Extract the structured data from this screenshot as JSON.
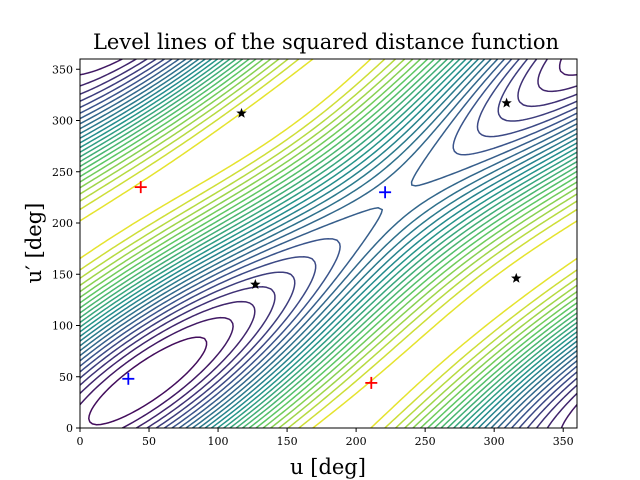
{
  "chart_data": {
    "type": "contour",
    "title": "Level lines of the squared distance function",
    "xlabel": "u [deg]",
    "ylabel": "u′ [deg]",
    "xlim": [
      0,
      360
    ],
    "ylim": [
      0,
      360
    ],
    "xticks": [
      0,
      50,
      100,
      150,
      200,
      250,
      300,
      350
    ],
    "yticks": [
      0,
      50,
      100,
      150,
      200,
      250,
      300,
      350
    ],
    "grid": false,
    "colormap": [
      "#440154",
      "#3b528b",
      "#21918c",
      "#5ec962",
      "#fde725"
    ],
    "minima": [
      {
        "u": 35,
        "up": 48
      },
      {
        "u": 221,
        "up": 230
      }
    ],
    "maxima": [
      {
        "u": 44,
        "up": 235
      },
      {
        "u": 211,
        "up": 44
      }
    ],
    "saddles": [
      {
        "u": 117,
        "up": 307
      },
      {
        "u": 127,
        "up": 140
      },
      {
        "u": 309,
        "up": 317
      },
      {
        "u": 316,
        "up": 146
      }
    ],
    "minima_color": "#0000ff",
    "maxima_color": "#ff0000",
    "saddle_color": "#000000"
  }
}
